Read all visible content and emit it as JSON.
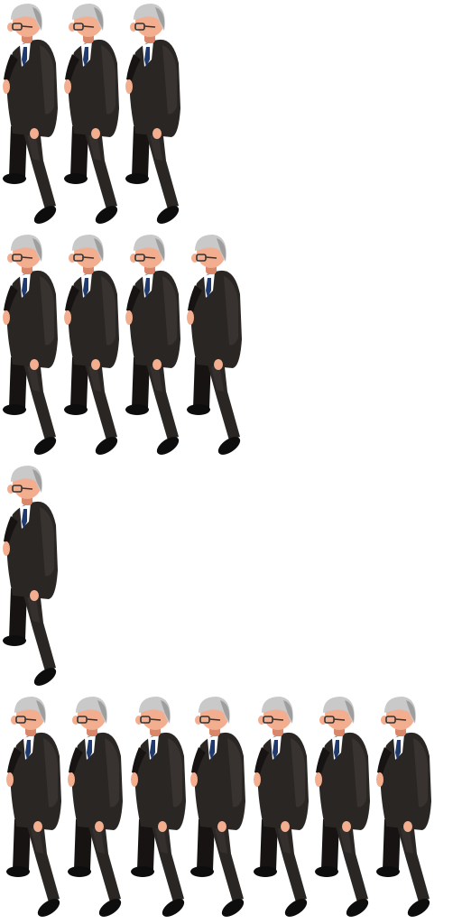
{
  "sprite_sheet": {
    "character": "old-man-in-black-suit",
    "colors": {
      "background": "#ffffff",
      "suit": "#2a2624",
      "suit_shadow": "#161312",
      "suit_highlight": "#4a4441",
      "skin": "#f2ae8f",
      "skin_shadow": "#d8876a",
      "hair": "#c9c9c9",
      "hair_shadow": "#9e9e9e",
      "shirt": "#ffffff",
      "tie": "#1f3a6e",
      "shoes": "#0d0d0d",
      "glasses": "#333333"
    },
    "rows": [
      {
        "name": "row-1",
        "frames": 3
      },
      {
        "name": "row-2",
        "frames": 4
      },
      {
        "name": "row-3",
        "frames": 1
      },
      {
        "name": "row-4",
        "frames": 7
      }
    ]
  }
}
